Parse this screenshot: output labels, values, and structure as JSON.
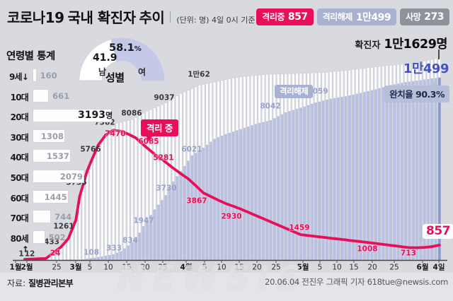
{
  "title": {
    "prefix": "코로나19",
    "emphasis": "국내 확진자",
    "suffix": "추이",
    "unit_note": "(단위: 명) 4일 0시 기준"
  },
  "summary_badges": [
    {
      "label": "격리중",
      "value": "857",
      "bg": "#e70f5a"
    },
    {
      "label": "격리해제",
      "value": "1만499",
      "bg": "#a8b2d0"
    },
    {
      "label": "사망",
      "value": "273",
      "bg": "#8e939b"
    }
  ],
  "confirmed_total": {
    "label": "확진자",
    "value": "1만1629명"
  },
  "released_total_big": "1만499",
  "quarantine_now_big": "857",
  "age_stats": {
    "heading": "연령별 통계",
    "max_value": 3193,
    "rows": [
      {
        "label": "9세↓",
        "value": 160,
        "display": "160"
      },
      {
        "label": "10대",
        "value": 661,
        "display": "661"
      },
      {
        "label": "20대",
        "value": 3193,
        "display": "3193",
        "suffix": "명",
        "highlight": true
      },
      {
        "label": "30대",
        "value": 1308,
        "display": "1308"
      },
      {
        "label": "40대",
        "value": 1537,
        "display": "1537"
      },
      {
        "label": "50대",
        "value": 2079,
        "display": "2079"
      },
      {
        "label": "60대",
        "value": 1445,
        "display": "1445"
      },
      {
        "label": "70대",
        "value": 744,
        "display": "744"
      },
      {
        "label": "80세↑",
        "value": 502,
        "display": "502"
      }
    ]
  },
  "gender": {
    "heading": "성별",
    "male": {
      "label": "남",
      "display": "41.9",
      "pct": 41.9,
      "color": "#ffffff"
    },
    "female": {
      "label": "여",
      "display": "58.1",
      "pct_sign": "%",
      "pct": 58.1,
      "color": "#c3c9e6"
    }
  },
  "chart_data": {
    "type": "bar",
    "note": "누적 확진자(흰 막대)·누적 격리해제(보라 막대)·격리중(빨간 선), 1월20일~6월4일 일별",
    "ylim": [
      0,
      11629
    ],
    "series": [
      {
        "name": "확진자(누적)",
        "style": "bar-outline",
        "color": "#fdfdfe",
        "final": 11629,
        "anchors": [
          [
            0,
            104
          ],
          [
            2,
            433
          ],
          [
            4,
            760
          ],
          [
            6,
            1261
          ],
          [
            8,
            2337
          ],
          [
            9,
            3736
          ],
          [
            11,
            5186
          ],
          [
            12,
            5766
          ],
          [
            14,
            6767
          ],
          [
            16,
            7382
          ],
          [
            19,
            7869
          ],
          [
            23,
            8086
          ],
          [
            27,
            8565
          ],
          [
            32,
            9037
          ],
          [
            36,
            9583
          ],
          [
            41,
            10062
          ],
          [
            45,
            10237
          ],
          [
            50,
            10480
          ],
          [
            55,
            10613
          ],
          [
            60,
            10694
          ],
          [
            65,
            10718
          ],
          [
            70,
            10752
          ],
          [
            75,
            10804
          ],
          [
            80,
            10910
          ],
          [
            85,
            11037
          ],
          [
            90,
            11165
          ],
          [
            95,
            11265
          ],
          [
            100,
            11402
          ],
          [
            105,
            11629
          ]
        ]
      },
      {
        "name": "격리해제(누적)",
        "style": "bar-fill",
        "color": "#b9c0e2",
        "final": 10499,
        "anchors": [
          [
            0,
            10
          ],
          [
            4,
            16
          ],
          [
            8,
            22
          ],
          [
            10,
            31
          ],
          [
            12,
            108
          ],
          [
            15,
            204
          ],
          [
            18,
            333
          ],
          [
            20,
            510
          ],
          [
            22,
            834
          ],
          [
            24,
            1212
          ],
          [
            26,
            1947
          ],
          [
            29,
            2909
          ],
          [
            32,
            3730
          ],
          [
            34,
            4528
          ],
          [
            37,
            5408
          ],
          [
            39,
            6021
          ],
          [
            42,
            6463
          ],
          [
            45,
            6973
          ],
          [
            48,
            7243
          ],
          [
            52,
            7534
          ],
          [
            56,
            7829
          ],
          [
            60,
            8042
          ],
          [
            64,
            8501
          ],
          [
            68,
            8764
          ],
          [
            72,
            9059
          ],
          [
            76,
            9283
          ],
          [
            80,
            9419
          ],
          [
            84,
            9610
          ],
          [
            88,
            9821
          ],
          [
            92,
            10066
          ],
          [
            96,
            10237
          ],
          [
            100,
            10350
          ],
          [
            103,
            10446
          ],
          [
            105,
            10499
          ]
        ]
      },
      {
        "name": "격리중",
        "style": "line",
        "color": "#e70f5a",
        "final": 857,
        "anchors": [
          [
            0,
            87
          ],
          [
            2,
            413
          ],
          [
            4,
            744
          ],
          [
            6,
            1235
          ],
          [
            8,
            2300
          ],
          [
            9,
            3654
          ],
          [
            11,
            5120
          ],
          [
            12,
            5643
          ],
          [
            14,
            6636
          ],
          [
            16,
            7213
          ],
          [
            18,
            7470
          ],
          [
            20,
            7413
          ],
          [
            22,
            7243
          ],
          [
            24,
            7024
          ],
          [
            26,
            6636
          ],
          [
            29,
            6085
          ],
          [
            31,
            5789
          ],
          [
            34,
            5281
          ],
          [
            36,
            4966
          ],
          [
            38,
            4665
          ],
          [
            40,
            4275
          ],
          [
            42,
            3867
          ],
          [
            44,
            3654
          ],
          [
            46,
            3444
          ],
          [
            48,
            3246
          ],
          [
            50,
            3096
          ],
          [
            52,
            2930
          ],
          [
            55,
            2654
          ],
          [
            58,
            2378
          ],
          [
            61,
            2102
          ],
          [
            64,
            1826
          ],
          [
            66,
            1642
          ],
          [
            68,
            1459
          ],
          [
            72,
            1358
          ],
          [
            76,
            1257
          ],
          [
            80,
            1157
          ],
          [
            83,
            1082
          ],
          [
            86,
            1008
          ],
          [
            90,
            900
          ],
          [
            93,
            820
          ],
          [
            95,
            762
          ],
          [
            97,
            713
          ],
          [
            99,
            707
          ],
          [
            101,
            725
          ],
          [
            103,
            772
          ],
          [
            105,
            857
          ]
        ]
      }
    ],
    "pre_line": [
      [
        35,
        367
      ],
      [
        48,
        366.5
      ],
      [
        58,
        366
      ]
    ],
    "x_ticks": [
      [
        "1월",
        22,
        1
      ],
      [
        "2월",
        38,
        1
      ],
      [
        "25",
        80,
        0
      ],
      [
        "3월",
        107,
        1
      ],
      [
        "5",
        127,
        0
      ],
      [
        "10",
        153,
        0
      ],
      [
        "15",
        179,
        0
      ],
      [
        "20",
        205,
        0
      ],
      [
        "25",
        230,
        0
      ],
      [
        "4월",
        263,
        1
      ],
      [
        "5",
        289,
        0
      ],
      [
        "10",
        313,
        0
      ],
      [
        "15",
        338,
        0
      ],
      [
        "20",
        363,
        0
      ],
      [
        "25",
        390,
        0
      ],
      [
        "5월",
        428,
        1
      ],
      [
        "5",
        452,
        0
      ],
      [
        "10",
        476,
        0
      ],
      [
        "15",
        500,
        0
      ],
      [
        "20",
        526,
        0
      ],
      [
        "25",
        557,
        0
      ],
      [
        "6월",
        597,
        1
      ],
      [
        "4일",
        620,
        1
      ]
    ],
    "value_labels": {
      "confirmed": [
        [
          "1",
          30,
          359
        ],
        [
          "12",
          42,
          359
        ],
        [
          "433",
          73,
          342
        ],
        [
          "1261",
          90,
          320
        ],
        [
          "3736",
          108,
          258
        ],
        [
          "5766",
          128,
          211
        ],
        [
          "7382",
          148,
          173
        ],
        [
          "8086",
          186,
          160
        ],
        [
          "9037",
          232,
          138
        ],
        [
          "1만62",
          281,
          105
        ]
      ],
      "quarantine": [
        [
          "24",
          78,
          358
        ],
        [
          "7470",
          163,
          189
        ],
        [
          "6085",
          210,
          200
        ],
        [
          "5281",
          231,
          223
        ],
        [
          "3867",
          278,
          284
        ],
        [
          "2930",
          327,
          306
        ],
        [
          "1459",
          423,
          322
        ],
        [
          "1008",
          519,
          352
        ],
        [
          "713",
          577,
          358
        ]
      ],
      "released": [
        [
          "108",
          129,
          357
        ],
        [
          "333",
          161,
          351
        ],
        [
          "834",
          184,
          340
        ],
        [
          "1947",
          203,
          312
        ],
        [
          "3730",
          235,
          266
        ],
        [
          "6021",
          271,
          211
        ],
        [
          "8042",
          382,
          150
        ],
        [
          "9059",
          449,
          129
        ]
      ]
    },
    "callouts": {
      "quarantining": "격리 중",
      "released": "격리해제",
      "cure_rate": "완치율 90.3%"
    }
  },
  "footer": {
    "source_label": "자료:",
    "source": "질병관리본부",
    "credit": "20.06.04 전진우 그래픽 기자 618tue@newsis.com",
    "watermark": "NEWSIS"
  }
}
